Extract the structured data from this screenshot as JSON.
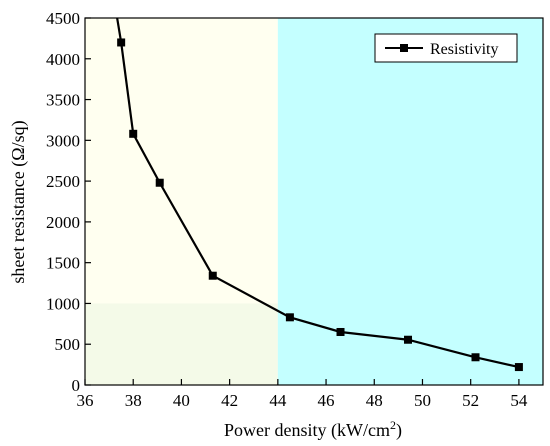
{
  "chart_data": {
    "type": "line",
    "xlabel": "Power density  (kW/cm",
    "xlabel_sup": "2",
    "xlabel_end": ")",
    "ylabel": "sheet resistance (Ω/sq)",
    "xlim": [
      36,
      55
    ],
    "ylim": [
      0,
      4500
    ],
    "x_ticks": [
      36,
      38,
      40,
      42,
      44,
      46,
      48,
      50,
      52,
      54
    ],
    "y_ticks": [
      0,
      500,
      1000,
      1500,
      2000,
      2500,
      3000,
      3500,
      4000,
      4500
    ],
    "grid": false,
    "legend_position": "top-right",
    "regions": [
      {
        "x_range": [
          36,
          44
        ],
        "y_range": [
          1000,
          4500
        ],
        "color": "#fffff0"
      },
      {
        "x_range": [
          36,
          44
        ],
        "y_range": [
          0,
          1000
        ],
        "color": "#f4fae8"
      },
      {
        "x_range": [
          44,
          55
        ],
        "y_range": [
          0,
          4500
        ],
        "color": "#c4ffff"
      }
    ],
    "series": [
      {
        "name": "Resistivity",
        "color": "#000000",
        "marker": "square",
        "x": [
          37.5,
          38.0,
          39.1,
          41.3,
          44.5,
          46.6,
          49.4,
          52.2,
          54.0
        ],
        "y": [
          4200,
          3080,
          2480,
          1340,
          830,
          650,
          555,
          340,
          220
        ]
      }
    ],
    "line_extension": {
      "x": 37.3,
      "y": 4560
    }
  }
}
